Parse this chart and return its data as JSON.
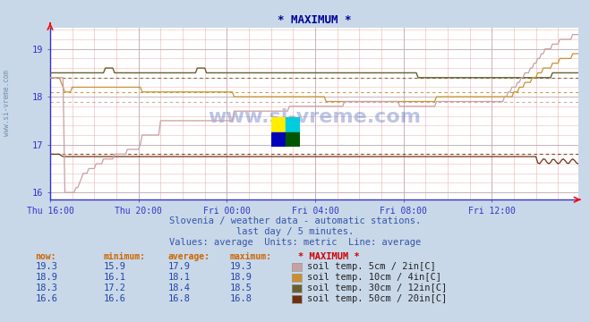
{
  "title": "* MAXIMUM *",
  "bg_color": "#c8d8e8",
  "plot_bg": "#ffffff",
  "x_tick_labels": [
    "Thu 16:00",
    "Thu 20:00",
    "Fri 00:00",
    "Fri 04:00",
    "Fri 08:00",
    "Fri 12:00"
  ],
  "x_ticks_pos": [
    0,
    48,
    96,
    144,
    192,
    240
  ],
  "total_points": 288,
  "ylim": [
    15.85,
    19.45
  ],
  "yticks": [
    16,
    17,
    18,
    19
  ],
  "watermark": "www.si-vreme.com",
  "subtitle1": "Slovenia / weather data - automatic stations.",
  "subtitle2": "last day / 5 minutes.",
  "subtitle3": "Values: average  Units: metric  Line: average",
  "series": [
    {
      "label": "soil temp. 5cm / 2in[C]",
      "color": "#c8a0a0",
      "now": 19.3,
      "min": 15.9,
      "avg": 17.9,
      "max": 19.3
    },
    {
      "label": "soil temp. 10cm / 4in[C]",
      "color": "#c89030",
      "now": 18.9,
      "min": 16.1,
      "avg": 18.1,
      "max": 18.9
    },
    {
      "label": "soil temp. 30cm / 12in[C]",
      "color": "#686030",
      "now": 18.3,
      "min": 17.2,
      "avg": 18.4,
      "max": 18.5
    },
    {
      "label": "soil temp. 50cm / 20in[C]",
      "color": "#703010",
      "now": 16.6,
      "min": 16.6,
      "avg": 16.8,
      "max": 16.8
    }
  ],
  "legend_colors": [
    "#c8a0a0",
    "#c89030",
    "#686030",
    "#703010"
  ],
  "table_data": [
    [
      "19.3",
      "15.9",
      "17.9",
      "19.3"
    ],
    [
      "18.9",
      "16.1",
      "18.1",
      "18.9"
    ],
    [
      "18.3",
      "17.2",
      "18.4",
      "18.5"
    ],
    [
      "16.6",
      "16.6",
      "16.8",
      "16.8"
    ]
  ]
}
